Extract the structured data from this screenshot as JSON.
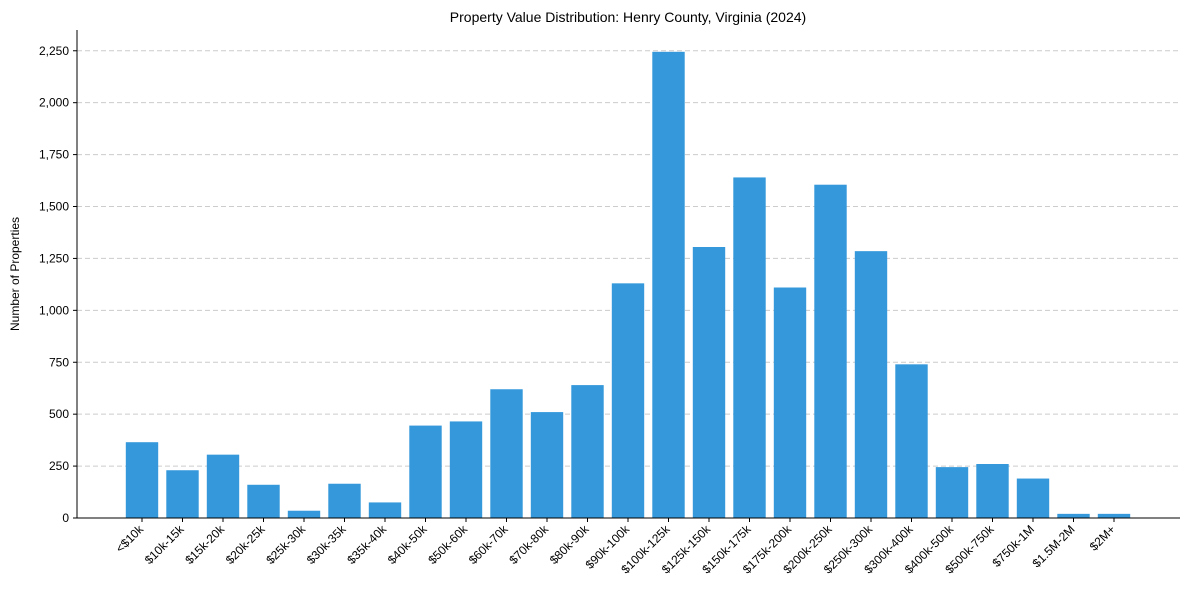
{
  "chart_data": {
    "type": "bar",
    "title": "Property Value Distribution: Henry County, Virginia (2024)",
    "xlabel": "",
    "ylabel": "Number of Properties",
    "ylim": [
      0,
      2350
    ],
    "yticks": [
      0,
      250,
      500,
      750,
      1000,
      1250,
      1500,
      1750,
      2000,
      2250
    ],
    "ytick_labels": [
      "0",
      "250",
      "500",
      "750",
      "1,000",
      "1,250",
      "1,500",
      "1,750",
      "2,000",
      "2,250"
    ],
    "grid": "y-dashed",
    "bar_color": "#3498db",
    "categories": [
      "<$10k",
      "$10k-15k",
      "$15k-20k",
      "$20k-25k",
      "$25k-30k",
      "$30k-35k",
      "$35k-40k",
      "$40k-50k",
      "$50k-60k",
      "$60k-70k",
      "$70k-80k",
      "$80k-90k",
      "$90k-100k",
      "$100k-125k",
      "$125k-150k",
      "$150k-175k",
      "$175k-200k",
      "$200k-250k",
      "$250k-300k",
      "$300k-400k",
      "$400k-500k",
      "$500k-750k",
      "$750k-1M",
      "$1.5M-2M",
      "$2M+"
    ],
    "values": [
      365,
      230,
      305,
      160,
      35,
      165,
      75,
      445,
      465,
      620,
      510,
      640,
      1130,
      2245,
      1305,
      1640,
      1110,
      1605,
      1285,
      740,
      245,
      260,
      190,
      20,
      20
    ]
  }
}
